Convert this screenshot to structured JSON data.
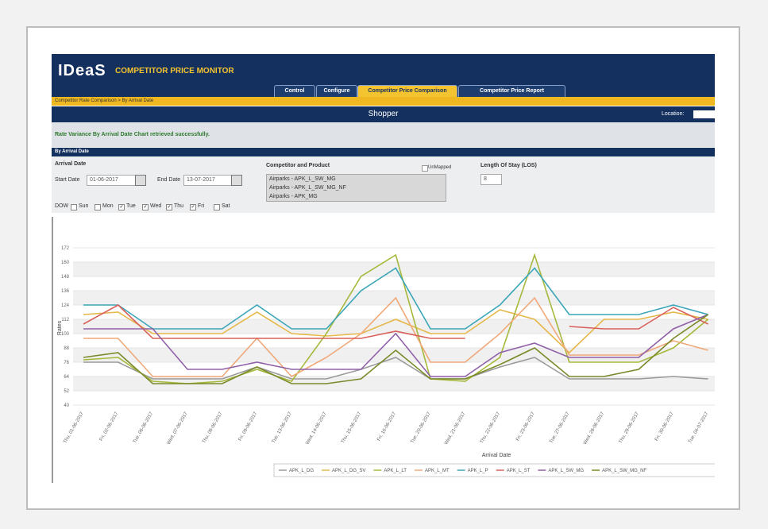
{
  "header": {
    "logo": "IDeaS",
    "app_title": "COMPETITOR PRICE MONITOR"
  },
  "tabs": [
    {
      "label": "Control",
      "active": false
    },
    {
      "label": "Configure",
      "active": false
    },
    {
      "label": "Competitor Price Comparison",
      "active": true
    },
    {
      "label": "Competitor Price Report",
      "active": false
    }
  ],
  "breadcrumb": "Competitor Rate Comparison > By Arrival Date",
  "page_title": "Shopper",
  "location_label": "Location:",
  "message": "Rate Variance By Arrival Date Chart retrieved successfully.",
  "section_title": "By Arrival Date",
  "form": {
    "arrival_date_label": "Arrival Date",
    "start_date_label": "Start Date",
    "start_date": "01-06-2017",
    "end_date_label": "End Date",
    "end_date": "13-07-2017",
    "dow_label": "DOW",
    "dow": [
      {
        "label": "Sun",
        "checked": false
      },
      {
        "label": "Mon",
        "checked": false
      },
      {
        "label": "Tue",
        "checked": true
      },
      {
        "label": "Wed",
        "checked": true
      },
      {
        "label": "Thu",
        "checked": true
      },
      {
        "label": "Fri",
        "checked": true
      },
      {
        "label": "Sat",
        "checked": false
      }
    ],
    "competitor_label": "Competitor and Product",
    "unmapped_label": "UnMapped",
    "competitor_options": [
      "Airparks - APK_L_SW_MG",
      "Airparks - APK_L_SW_MG_NF",
      "Airparks - APK_MG"
    ],
    "los_label": "Length Of Stay (LOS)",
    "los_value": "8"
  },
  "chart_data": {
    "type": "line",
    "x_label": "Arrival Date",
    "y_label": "Rates",
    "categories": [
      "Thu, 01-06-2017",
      "Fri, 02-06-2017",
      "Tue, 06-06-2017",
      "Wed, 07-06-2017",
      "Thu, 08-06-2017",
      "Fri, 09-06-2017",
      "Tue, 13-06-2017",
      "Wed, 14-06-2017",
      "Thu, 15-06-2017",
      "Fri, 16-06-2017",
      "Tue, 20-06-2017",
      "Wed, 21-06-2017",
      "Thu, 22-06-2017",
      "Fri, 23-06-2017",
      "Tue, 27-06-2017",
      "Wed, 28-06-2017",
      "Thu, 29-06-2017",
      "Fri, 30-06-2017",
      "Tue, 04-07-2017"
    ],
    "ylim": [
      40,
      172
    ],
    "yticks": [
      40,
      52,
      64,
      76,
      88,
      100,
      112,
      124,
      136,
      148,
      160,
      172
    ],
    "grid": true,
    "series": [
      {
        "name": "APK_L_DG",
        "color": "#9a9a9a",
        "values": [
          76,
          76,
          62,
          62,
          62,
          72,
          62,
          62,
          70,
          80,
          62,
          62,
          72,
          80,
          62,
          62,
          62,
          64,
          62
        ]
      },
      {
        "name": "APK_L_DG_SV",
        "color": "#e6b84a",
        "values": [
          116,
          118,
          100,
          100,
          100,
          118,
          100,
          98,
          100,
          112,
          100,
          100,
          120,
          112,
          84,
          112,
          112,
          118,
          112
        ]
      },
      {
        "name": "APK_L_LT",
        "color": "#a8b83c",
        "values": [
          78,
          80,
          60,
          58,
          60,
          70,
          60,
          100,
          148,
          166,
          62,
          60,
          80,
          166,
          76,
          76,
          76,
          88,
          112
        ]
      },
      {
        "name": "APK_L_MT",
        "color": "#f0a878",
        "values": [
          96,
          96,
          64,
          64,
          64,
          96,
          64,
          80,
          100,
          130,
          76,
          76,
          100,
          130,
          82,
          82,
          82,
          94,
          86
        ]
      },
      {
        "name": "APK_L_P",
        "color": "#3aa6b8",
        "values": [
          124,
          124,
          104,
          104,
          104,
          124,
          104,
          104,
          136,
          155,
          104,
          104,
          124,
          155,
          116,
          116,
          116,
          124,
          116
        ]
      },
      {
        "name": "APK_L_ST",
        "color": "#d9605a",
        "values": [
          108,
          124,
          96,
          96,
          96,
          96,
          96,
          96,
          96,
          102,
          96,
          96,
          null,
          null,
          106,
          104,
          104,
          122,
          108
        ]
      },
      {
        "name": "APK_L_SW_MG",
        "color": "#9060a8",
        "values": [
          104,
          104,
          104,
          70,
          70,
          76,
          70,
          70,
          70,
          100,
          64,
          64,
          84,
          92,
          80,
          80,
          80,
          104,
          116
        ]
      },
      {
        "name": "APK_L_SW_MG_NF",
        "color": "#7a8a2a",
        "values": [
          80,
          84,
          58,
          58,
          58,
          72,
          58,
          58,
          62,
          86,
          62,
          62,
          74,
          88,
          64,
          64,
          70,
          96,
          116
        ]
      }
    ]
  }
}
